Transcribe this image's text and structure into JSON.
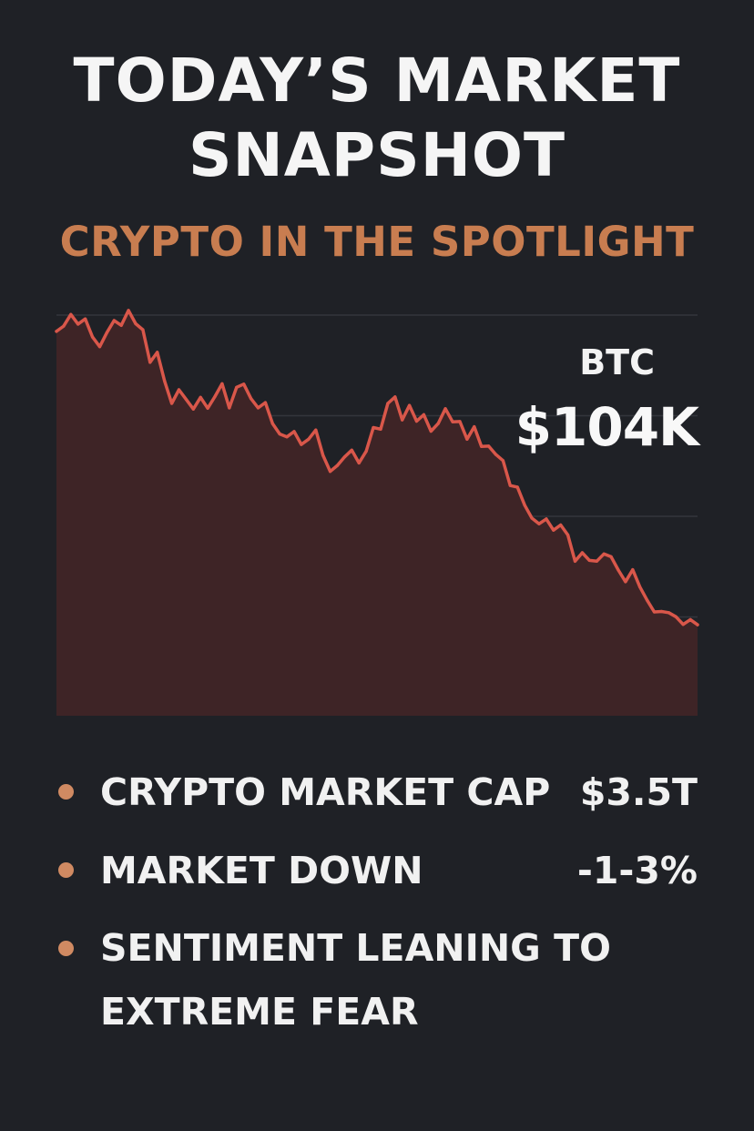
{
  "header": {
    "title_line1": "TODAY’S MARKET",
    "title_line2": "SNAPSHOT",
    "subtitle": "CRYPTO IN THE SPOTLIGHT"
  },
  "btc": {
    "label": "BTC",
    "price": "$104K"
  },
  "stats": [
    {
      "label": "CRYPTO MARKET CAP",
      "value": "$3.5T"
    },
    {
      "label": "MARKET DOWN",
      "value": "-1-3%"
    },
    {
      "label_line1": "SENTIMENT LEANING TO",
      "label_line2": "EXTREME FEAR"
    }
  ],
  "colors": {
    "background": "#1f2126",
    "accent": "#c87d50",
    "line": "#d9574a",
    "area_fill": "#3e2426",
    "grid": "#33363c",
    "bullet": "#d08a62"
  },
  "chart_data": {
    "type": "area",
    "series": [
      {
        "name": "BTC",
        "values": [
          95.5,
          96.8,
          99.7,
          97.3,
          98.6,
          94.1,
          91.7,
          95.2,
          98.2,
          97.0,
          100.7,
          97.4,
          95.9,
          87.8,
          90.3,
          83.2,
          77.6,
          81.0,
          78.6,
          76.2,
          79.1,
          76.4,
          79.3,
          82.5,
          76.5,
          81.6,
          82.4,
          78.8,
          76.5,
          77.8,
          72.6,
          70.0,
          69.3,
          70.6,
          67.4,
          68.7,
          71.0,
          64.7,
          60.7,
          62.2,
          64.3,
          66.0,
          62.8,
          65.7,
          71.6,
          71.2,
          77.6,
          79.2,
          73.5,
          77.1,
          73.2,
          74.8,
          70.7,
          72.6,
          76.3,
          73.0,
          73.1,
          68.7,
          71.8,
          66.9,
          67.0,
          64.9,
          63.4,
          57.2,
          56.8,
          52.3,
          49.1,
          47.7,
          48.9,
          46.1,
          47.4,
          44.9,
          38.4,
          40.5,
          38.6,
          38.4,
          40.2,
          39.5,
          36.2,
          33.3,
          36.3,
          32.0,
          28.7,
          25.8,
          25.9,
          25.6,
          24.6,
          22.7,
          23.9,
          22.6
        ]
      }
    ],
    "x_points": 90,
    "title": "BTC",
    "xlabel": "",
    "ylabel": "",
    "ylim": [
      0,
      100
    ],
    "grid": true
  }
}
